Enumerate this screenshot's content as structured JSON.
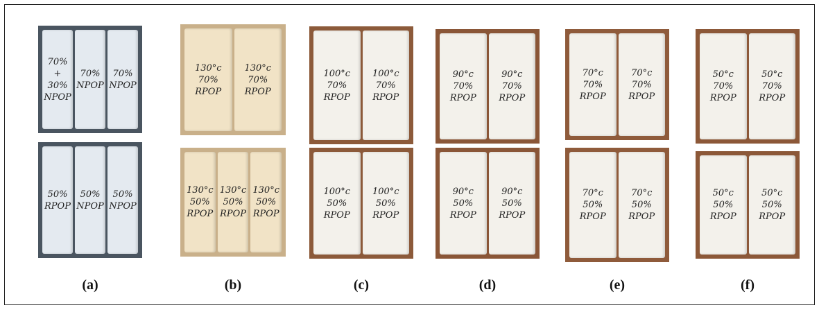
{
  "panels": [
    {
      "caption": "(a)",
      "top": [
        [
          "70%",
          "+",
          "30%",
          "NPOP"
        ],
        [
          "70%",
          "NPOP"
        ],
        [
          "70%",
          "NPOP"
        ]
      ],
      "bottom": [
        [
          "50%",
          "RPOP"
        ],
        [
          "50%",
          "NPOP"
        ],
        [
          "50%",
          "NPOP"
        ]
      ]
    },
    {
      "caption": "(b)",
      "top": [
        [
          "130°c",
          "70%",
          "RPOP"
        ],
        [
          "130°c",
          "70%",
          "RPOP"
        ]
      ],
      "bottom": [
        [
          "130°c",
          "50%",
          "RPOP"
        ],
        [
          "130°c",
          "50%",
          "RPOP"
        ],
        [
          "130°c",
          "50%",
          "RPOP"
        ]
      ]
    },
    {
      "caption": "(c)",
      "top": [
        [
          "100°c",
          "70%",
          "RPOP"
        ],
        [
          "100°c",
          "70%",
          "RPOP"
        ]
      ],
      "bottom": [
        [
          "100°c",
          "50%",
          "RPOP"
        ],
        [
          "100°c",
          "50%",
          "RPOP"
        ]
      ]
    },
    {
      "caption": "(d)",
      "top": [
        [
          "90°c",
          "70%",
          "RPOP"
        ],
        [
          "90°c",
          "70%",
          "RPOP"
        ]
      ],
      "bottom": [
        [
          "90°c",
          "50%",
          "RPOP"
        ],
        [
          "90°c",
          "50%",
          "RPOP"
        ]
      ]
    },
    {
      "caption": "(e)",
      "top": [
        [
          "70°c",
          "70%",
          "RPOP"
        ],
        [
          "70°c",
          "70%",
          "RPOP"
        ]
      ],
      "bottom": [
        [
          "70°c",
          "50%",
          "RPOP"
        ],
        [
          "70°c",
          "50%",
          "RPOP"
        ]
      ]
    },
    {
      "caption": "(f)",
      "top": [
        [
          "50°c",
          "70%",
          "RPOP"
        ],
        [
          "50°c",
          "70%",
          "RPOP"
        ]
      ],
      "bottom": [
        [
          "50°c",
          "50%",
          "RPOP"
        ],
        [
          "50°c",
          "50%",
          "RPOP"
        ]
      ]
    }
  ]
}
